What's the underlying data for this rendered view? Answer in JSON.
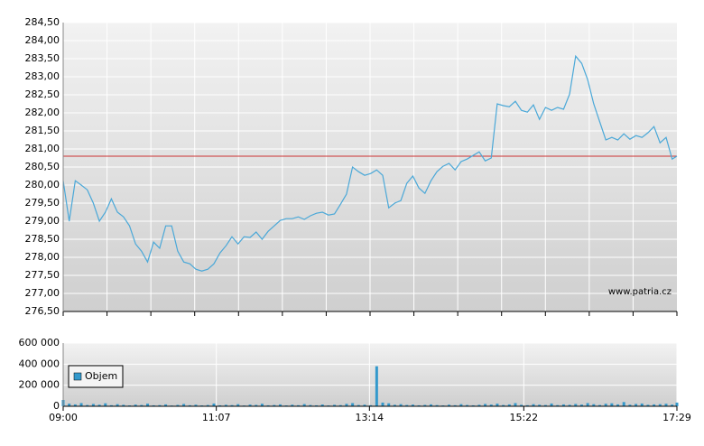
{
  "chart_data": [
    {
      "type": "line",
      "color": "#4aa8d8",
      "x": [
        "09:00",
        "09:05",
        "09:10",
        "09:15",
        "09:20",
        "09:25",
        "09:30",
        "09:35",
        "09:40",
        "09:45",
        "09:50",
        "09:55",
        "10:00",
        "10:05",
        "10:10",
        "10:15",
        "10:20",
        "10:25",
        "10:30",
        "10:35",
        "10:40",
        "10:45",
        "10:50",
        "10:55",
        "11:00",
        "11:05",
        "11:10",
        "11:15",
        "11:20",
        "11:25",
        "11:30",
        "11:35",
        "11:40",
        "11:45",
        "11:50",
        "11:55",
        "12:00",
        "12:05",
        "12:10",
        "12:15",
        "12:20",
        "12:25",
        "12:30",
        "12:35",
        "12:40",
        "12:45",
        "12:50",
        "12:55",
        "13:00",
        "13:05",
        "13:10",
        "13:15",
        "13:20",
        "13:25",
        "13:30",
        "13:35",
        "13:40",
        "13:45",
        "13:50",
        "13:55",
        "14:00",
        "14:05",
        "14:10",
        "14:15",
        "14:20",
        "14:25",
        "14:30",
        "14:35",
        "14:40",
        "14:45",
        "14:50",
        "14:55",
        "15:00",
        "15:05",
        "15:10",
        "15:15",
        "15:20",
        "15:25",
        "15:30",
        "15:35",
        "15:40",
        "15:45",
        "15:50",
        "15:55",
        "16:00",
        "16:05",
        "16:10",
        "16:15",
        "16:20",
        "16:25",
        "16:30",
        "16:35",
        "16:40",
        "16:45",
        "16:50",
        "16:55",
        "17:00",
        "17:05",
        "17:10",
        "17:15",
        "17:20",
        "17:25",
        "17:29"
      ],
      "values": [
        280.12,
        279.0,
        280.12,
        280.0,
        279.87,
        279.5,
        279.0,
        279.25,
        279.62,
        279.25,
        279.12,
        278.87,
        278.37,
        278.17,
        277.87,
        278.42,
        278.25,
        278.87,
        278.87,
        278.17,
        277.87,
        277.82,
        277.67,
        277.62,
        277.67,
        277.82,
        278.12,
        278.32,
        278.57,
        278.37,
        278.57,
        278.55,
        278.7,
        278.5,
        278.72,
        278.87,
        279.02,
        279.07,
        279.07,
        279.12,
        279.05,
        279.15,
        279.22,
        279.25,
        279.17,
        279.2,
        279.47,
        279.75,
        280.5,
        280.37,
        280.27,
        280.32,
        280.42,
        280.27,
        279.37,
        279.5,
        279.57,
        280.05,
        280.25,
        279.92,
        279.77,
        280.12,
        280.37,
        280.52,
        280.6,
        280.42,
        280.65,
        280.72,
        280.82,
        280.92,
        280.67,
        280.75,
        282.25,
        282.2,
        282.17,
        282.32,
        282.07,
        282.02,
        282.22,
        281.82,
        282.15,
        282.07,
        282.15,
        282.1,
        282.52,
        283.57,
        283.37,
        282.92,
        282.25,
        281.75,
        281.25,
        281.32,
        281.25,
        281.42,
        281.27,
        281.37,
        281.32,
        281.45,
        281.62,
        281.17,
        281.32,
        280.72,
        280.8
      ],
      "reference_value": 280.8,
      "reference_color": "#cc3333",
      "xlim": [
        "09:00",
        "17:29"
      ],
      "ylim": [
        276.5,
        284.5
      ],
      "yticks": [
        {
          "value": 276.5,
          "label": "276,50"
        },
        {
          "value": 277,
          "label": "277,00"
        },
        {
          "value": 277.5,
          "label": "277,50"
        },
        {
          "value": 278,
          "label": "278,00"
        },
        {
          "value": 278.5,
          "label": "278,50"
        },
        {
          "value": 279,
          "label": "279,00"
        },
        {
          "value": 279.5,
          "label": "279,50"
        },
        {
          "value": 280,
          "label": "280,00"
        },
        {
          "value": 280.5,
          "label": "280,50"
        },
        {
          "value": 281,
          "label": "281,00"
        },
        {
          "value": 281.5,
          "label": "281,50"
        },
        {
          "value": 282,
          "label": "282,00"
        },
        {
          "value": 282.5,
          "label": "282,50"
        },
        {
          "value": 283,
          "label": "283,00"
        },
        {
          "value": 283.5,
          "label": "283,50"
        },
        {
          "value": 284,
          "label": "284,00"
        },
        {
          "value": 284.5,
          "label": "284,50"
        }
      ],
      "watermark": "www.patria.cz",
      "grid": true
    },
    {
      "type": "bar",
      "x": [
        "09:00",
        "09:05",
        "09:10",
        "09:15",
        "09:20",
        "09:25",
        "09:30",
        "09:35",
        "09:40",
        "09:45",
        "09:50",
        "09:55",
        "10:00",
        "10:05",
        "10:10",
        "10:15",
        "10:20",
        "10:25",
        "10:30",
        "10:35",
        "10:40",
        "10:45",
        "10:50",
        "10:55",
        "11:00",
        "11:05",
        "11:10",
        "11:15",
        "11:20",
        "11:25",
        "11:30",
        "11:35",
        "11:40",
        "11:45",
        "11:50",
        "11:55",
        "12:00",
        "12:05",
        "12:10",
        "12:15",
        "12:20",
        "12:25",
        "12:30",
        "12:35",
        "12:40",
        "12:45",
        "12:50",
        "12:55",
        "13:00",
        "13:05",
        "13:10",
        "13:15",
        "13:20",
        "13:25",
        "13:30",
        "13:35",
        "13:40",
        "13:45",
        "13:50",
        "13:55",
        "14:00",
        "14:05",
        "14:10",
        "14:15",
        "14:20",
        "14:25",
        "14:30",
        "14:35",
        "14:40",
        "14:45",
        "14:50",
        "14:55",
        "15:00",
        "15:05",
        "15:10",
        "15:15",
        "15:20",
        "15:25",
        "15:30",
        "15:35",
        "15:40",
        "15:45",
        "15:50",
        "15:55",
        "16:00",
        "16:05",
        "16:10",
        "16:15",
        "16:20",
        "16:25",
        "16:30",
        "16:35",
        "16:40",
        "16:45",
        "16:50",
        "16:55",
        "17:00",
        "17:05",
        "17:10",
        "17:15",
        "17:20",
        "17:25",
        "17:29"
      ],
      "series": [
        {
          "name": "Objem",
          "color": "#3399cc",
          "values": [
            60000,
            25000,
            18000,
            30000,
            12000,
            22000,
            15000,
            28000,
            10000,
            20000,
            14000,
            8000,
            16000,
            12000,
            25000,
            9000,
            11000,
            18000,
            7000,
            13000,
            22000,
            10000,
            15000,
            8000,
            12000,
            26000,
            9000,
            14000,
            11000,
            20000,
            7000,
            16000,
            13000,
            24000,
            9000,
            12000,
            18000,
            8000,
            15000,
            10000,
            21000,
            12000,
            9000,
            17000,
            8000,
            14000,
            11000,
            23000,
            30000,
            12000,
            15000,
            10000,
            380000,
            35000,
            28000,
            14000,
            20000,
            12000,
            16000,
            9000,
            13000,
            18000,
            11000,
            8000,
            15000,
            10000,
            20000,
            12000,
            9000,
            14000,
            22000,
            16000,
            25000,
            12000,
            18000,
            30000,
            14000,
            10000,
            20000,
            15000,
            12000,
            26000,
            11000,
            18000,
            14000,
            22000,
            16000,
            30000,
            20000,
            12000,
            24000,
            28000,
            18000,
            40000,
            15000,
            22000,
            26000,
            14000,
            18000,
            20000,
            24000,
            16000,
            35000
          ]
        }
      ],
      "xlim": [
        "09:00",
        "17:29"
      ],
      "xticks": [
        "09:00",
        "11:07",
        "13:14",
        "15:22",
        "17:29"
      ],
      "ylim": [
        0,
        600000
      ],
      "yticks": [
        0,
        {
          "value": 200000,
          "label": "200 000"
        },
        {
          "value": 400000,
          "label": "400 000"
        },
        {
          "value": 600000,
          "label": "600 000"
        }
      ],
      "legend": "upper-left",
      "grid": true
    }
  ]
}
